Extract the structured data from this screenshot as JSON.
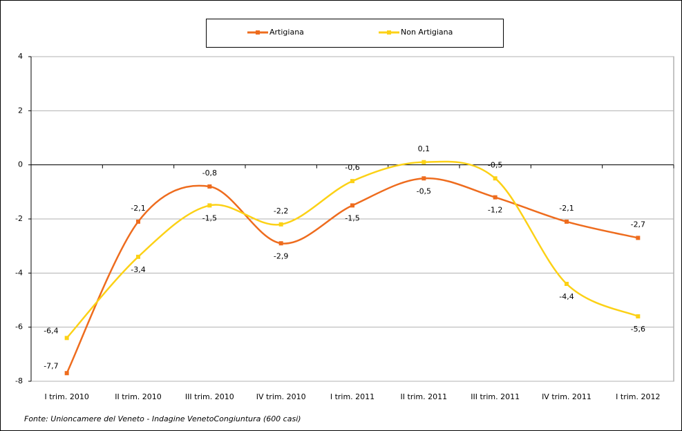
{
  "chart_data": {
    "type": "line",
    "categories": [
      "I trim. 2010",
      "II trim. 2010",
      "III trim. 2010",
      "IV trim. 2010",
      "I trim. 2011",
      "II trim. 2011",
      "III trim. 2011",
      "IV trim. 2011",
      "I trim.  2012"
    ],
    "series": [
      {
        "name": "Artigiana",
        "color": "#ee6c1e",
        "values": [
          -7.7,
          -2.1,
          -0.8,
          -2.9,
          -1.5,
          -0.5,
          -1.2,
          -2.1,
          -2.7
        ],
        "value_labels": [
          "-7,7",
          "-2,1",
          "-0,8",
          "-2,9",
          "-1,5",
          "-0,5",
          "-1,2",
          "-2,1",
          "-2,7"
        ]
      },
      {
        "name": "Non Artigiana",
        "color": "#fcd116",
        "values": [
          -6.4,
          -3.4,
          -1.5,
          -2.2,
          -0.6,
          0.1,
          -0.5,
          -4.4,
          -5.6
        ],
        "value_labels": [
          "-6,4",
          "-3,4",
          "-1,5",
          "-2,2",
          "-0,6",
          "0,1",
          "-0,5",
          "-4,4",
          "-5,6"
        ]
      }
    ],
    "ylim": [
      -8,
      4
    ],
    "yticks": [
      4,
      2,
      0,
      -2,
      -4,
      -6,
      -8
    ],
    "grid": true,
    "smooth": true,
    "legend": "top",
    "source": "Fonte: Unioncamere del Veneto - Indagine VenetoCongiuntura (600 casi)"
  }
}
